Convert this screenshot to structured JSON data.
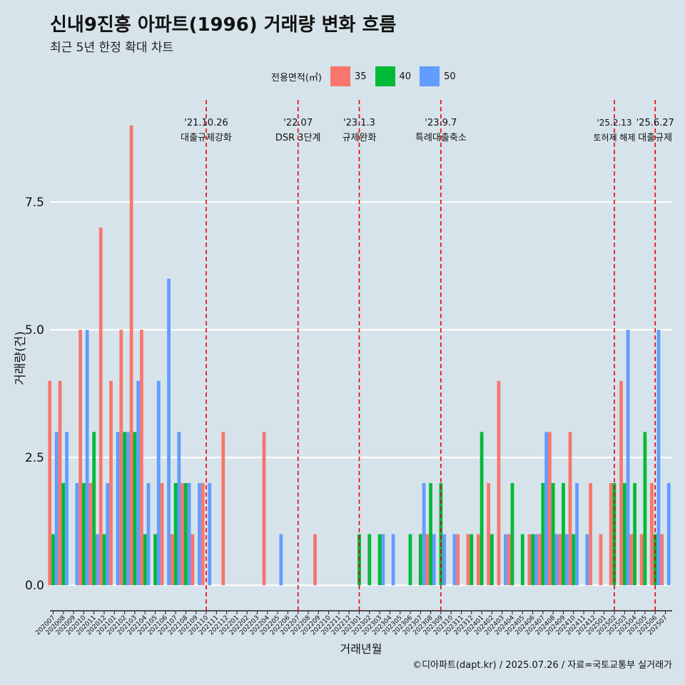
{
  "chart_data": {
    "type": "bar",
    "title": "신내9진흥 아파트(1996) 거래량 변화 흐름",
    "subtitle": "최근 5년 한정 확대 차트",
    "xlabel": "거래년월",
    "ylabel": "거래량(건)",
    "ylim": [
      -0.5,
      9.5
    ],
    "y_ticks": [
      "0.0",
      "2.5",
      "5.0",
      "7.5"
    ],
    "legend_title": "전용면적(㎡)",
    "legend_position": "top",
    "grid": true,
    "months": [
      "202007",
      "202008",
      "202009",
      "202010",
      "202011",
      "202012",
      "202101",
      "202102",
      "202103",
      "202104",
      "202105",
      "202106",
      "202107",
      "202108",
      "202109",
      "202110",
      "202111",
      "202112",
      "202201",
      "202202",
      "202203",
      "202204",
      "202205",
      "202206",
      "202207",
      "202208",
      "202209",
      "202210",
      "202211",
      "202212",
      "202301",
      "202302",
      "202303",
      "202304",
      "202305",
      "202306",
      "202307",
      "202308",
      "202309",
      "202310",
      "202311",
      "202312",
      "202401",
      "202402",
      "202403",
      "202404",
      "202405",
      "202406",
      "202407",
      "202408",
      "202409",
      "202410",
      "202411",
      "202412",
      "202501",
      "202502",
      "202503",
      "202504",
      "202505",
      "202506",
      "202507"
    ],
    "series": [
      {
        "name": "35",
        "color": "#F8766D",
        "values": [
          4,
          4,
          0,
          5,
          2,
          7,
          4,
          5,
          9,
          5,
          0,
          2,
          1,
          2,
          1,
          2,
          0,
          3,
          0,
          0,
          0,
          3,
          0,
          0,
          0,
          0,
          1,
          0,
          0,
          0,
          0,
          0,
          0,
          0,
          0,
          0,
          0,
          1,
          0,
          0,
          1,
          1,
          1,
          2,
          4,
          1,
          0,
          1,
          1,
          3,
          1,
          3,
          0,
          2,
          1,
          2,
          4,
          1,
          1,
          2,
          1
        ]
      },
      {
        "name": "40",
        "color": "#00BA38",
        "values": [
          1,
          2,
          0,
          2,
          3,
          1,
          0,
          3,
          3,
          1,
          1,
          0,
          2,
          2,
          0,
          0,
          0,
          0,
          0,
          0,
          0,
          0,
          0,
          0,
          0,
          0,
          0,
          0,
          0,
          0,
          1,
          1,
          1,
          0,
          0,
          1,
          1,
          2,
          2,
          0,
          0,
          1,
          3,
          1,
          0,
          2,
          1,
          1,
          2,
          2,
          2,
          1,
          0,
          0,
          0,
          2,
          2,
          2,
          3,
          1,
          0
        ]
      },
      {
        "name": "50",
        "color": "#619CFF",
        "values": [
          3,
          3,
          2,
          5,
          1,
          2,
          3,
          3,
          4,
          2,
          4,
          6,
          3,
          2,
          2,
          2,
          0,
          0,
          0,
          0,
          0,
          0,
          1,
          0,
          0,
          0,
          0,
          0,
          0,
          0,
          0,
          0,
          1,
          1,
          0,
          0,
          2,
          1,
          1,
          1,
          0,
          0,
          0,
          0,
          1,
          0,
          0,
          1,
          3,
          1,
          1,
          2,
          1,
          0,
          0,
          0,
          5,
          0,
          0,
          5,
          2
        ]
      }
    ],
    "annotations": [
      {
        "month": "202110",
        "date": "'21.10.26",
        "label": "대출규제강화"
      },
      {
        "month": "202207",
        "date": "'22.07",
        "label": "DSR 3단계"
      },
      {
        "month": "202301",
        "date": "'23.1.3",
        "label": "규제완화"
      },
      {
        "month": "202309",
        "date": "'23.9.7",
        "label": "특례대출축소"
      },
      {
        "month": "202502",
        "date": "'25.2.13",
        "label": "토허제 해제"
      },
      {
        "month": "202506",
        "date": "'25.6.27",
        "label": "대출규제"
      }
    ]
  },
  "caption": "©디아파트(dapt.kr) / 2025.07.26 / 자료=국토교통부 실거래가"
}
